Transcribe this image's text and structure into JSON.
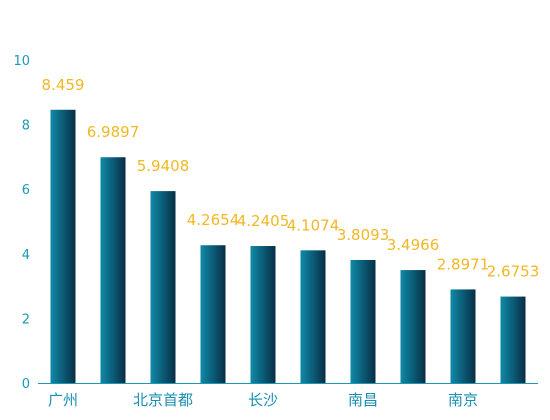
{
  "chart_data": {
    "type": "bar",
    "categories": [
      "广州",
      "",
      "北京首都",
      "",
      "长沙",
      "",
      "南昌",
      "",
      "南京",
      ""
    ],
    "values": [
      8.459,
      6.9897,
      5.9408,
      4.2654,
      4.2405,
      4.1074,
      3.8093,
      3.4966,
      2.8971,
      2.6753
    ],
    "value_labels": [
      "8.459",
      "6.9897",
      "5.9408",
      "4.2654",
      "4.2405",
      "4.1074",
      "3.8093",
      "3.4966",
      "2.8971",
      "2.6753"
    ],
    "yticks": [
      0,
      2,
      4,
      6,
      8,
      10
    ],
    "ylim": [
      0,
      10
    ],
    "colors": {
      "bar_light": "#0f8aa8",
      "bar_dark": "#082d45",
      "value_label": "#f2b824",
      "axis": "#1a9bb5",
      "category_label": "#1a8fb0"
    }
  }
}
